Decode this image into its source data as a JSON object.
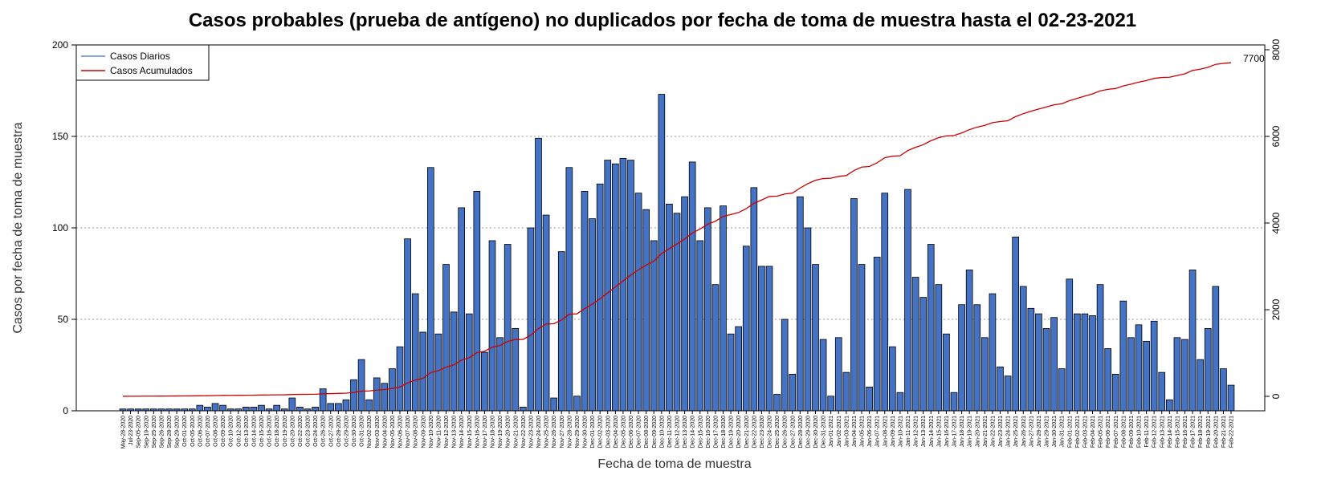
{
  "chart_data": {
    "type": "bar",
    "title": "Casos probables (prueba de antígeno) no duplicados por fecha de toma de muestra hasta el 02-23-2021",
    "xlabel": "Fecha de toma de muestra",
    "ylabel": "Casos por fecha de toma de muestra",
    "ylim": [
      0,
      200
    ],
    "y_ticks": [
      0,
      50,
      100,
      150,
      200
    ],
    "y2lim": [
      -400,
      8000
    ],
    "y2_ticks": [
      0,
      2000,
      4000,
      6000,
      8000
    ],
    "grid": "horizontal dotted at left-axis ticks",
    "legend_position": "top-left",
    "colors": {
      "bars": "#4472C4",
      "bar_outline": "#000000",
      "cumulative_line": "#CC0000",
      "daily_legend": "#5b8bd4",
      "grid": "#999999"
    },
    "categories": [
      "May-28-2020",
      "Jul-23-2020",
      "Sep-05-2020",
      "Sep-19-2020",
      "Sep-25-2020",
      "Sep-26-2020",
      "Sep-28-2020",
      "Sep-29-2020",
      "Oct-01-2020",
      "Oct-05-2020",
      "Oct-06-2020",
      "Oct-07-2020",
      "Oct-08-2020",
      "Oct-09-2020",
      "Oct-10-2020",
      "Oct-12-2020",
      "Oct-13-2020",
      "Oct-14-2020",
      "Oct-15-2020",
      "Oct-16-2020",
      "Oct-18-2020",
      "Oct-19-2020",
      "Oct-20-2020",
      "Oct-22-2020",
      "Oct-23-2020",
      "Oct-24-2020",
      "Oct-26-2020",
      "Oct-27-2020",
      "Oct-28-2020",
      "Oct-29-2020",
      "Oct-30-2020",
      "Oct-31-2020",
      "Nov-02-2020",
      "Nov-03-2020",
      "Nov-04-2020",
      "Nov-05-2020",
      "Nov-06-2020",
      "Nov-07-2020",
      "Nov-08-2020",
      "Nov-09-2020",
      "Nov-10-2020",
      "Nov-11-2020",
      "Nov-12-2020",
      "Nov-13-2020",
      "Nov-14-2020",
      "Nov-15-2020",
      "Nov-16-2020",
      "Nov-17-2020",
      "Nov-18-2020",
      "Nov-19-2020",
      "Nov-20-2020",
      "Nov-21-2020",
      "Nov-22-2020",
      "Nov-23-2020",
      "Nov-24-2020",
      "Nov-25-2020",
      "Nov-26-2020",
      "Nov-27-2020",
      "Nov-28-2020",
      "Nov-29-2020",
      "Nov-30-2020",
      "Dec-01-2020",
      "Dec-02-2020",
      "Dec-03-2020",
      "Dec-04-2020",
      "Dec-05-2020",
      "Dec-06-2020",
      "Dec-07-2020",
      "Dec-08-2020",
      "Dec-09-2020",
      "Dec-10-2020",
      "Dec-11-2020",
      "Dec-12-2020",
      "Dec-13-2020",
      "Dec-14-2020",
      "Dec-15-2020",
      "Dec-16-2020",
      "Dec-17-2020",
      "Dec-18-2020",
      "Dec-19-2020",
      "Dec-20-2020",
      "Dec-21-2020",
      "Dec-22-2020",
      "Dec-23-2020",
      "Dec-24-2020",
      "Dec-25-2020",
      "Dec-26-2020",
      "Dec-27-2020",
      "Dec-28-2020",
      "Dec-29-2020",
      "Dec-30-2020",
      "Dec-31-2020",
      "Jan-01-2021",
      "Jan-02-2021",
      "Jan-03-2021",
      "Jan-04-2021",
      "Jan-05-2021",
      "Jan-06-2021",
      "Jan-07-2021",
      "Jan-08-2021",
      "Jan-09-2021",
      "Jan-10-2021",
      "Jan-11-2021",
      "Jan-12-2021",
      "Jan-13-2021",
      "Jan-14-2021",
      "Jan-15-2021",
      "Jan-16-2021",
      "Jan-17-2021",
      "Jan-18-2021",
      "Jan-19-2021",
      "Jan-20-2021",
      "Jan-21-2021",
      "Jan-22-2021",
      "Jan-23-2021",
      "Jan-24-2021",
      "Jan-25-2021",
      "Jan-26-2021",
      "Jan-27-2021",
      "Jan-28-2021",
      "Jan-29-2021",
      "Jan-30-2021",
      "Jan-31-2021",
      "Feb-01-2021",
      "Feb-02-2021",
      "Feb-03-2021",
      "Feb-04-2021",
      "Feb-05-2021",
      "Feb-06-2021",
      "Feb-07-2021",
      "Feb-08-2021",
      "Feb-09-2021",
      "Feb-10-2021",
      "Feb-11-2021",
      "Feb-12-2021",
      "Feb-13-2021",
      "Feb-14-2021",
      "Feb-15-2021",
      "Feb-16-2021",
      "Feb-17-2021",
      "Feb-18-2021",
      "Feb-19-2021",
      "Feb-20-2021",
      "Feb-21-2021",
      "Feb-22-2021"
    ],
    "series": [
      {
        "name": "Casos Diarios",
        "values": [
          1,
          1,
          1,
          1,
          1,
          1,
          1,
          1,
          1,
          1,
          3,
          2,
          4,
          3,
          1,
          1,
          2,
          2,
          3,
          1,
          3,
          1,
          7,
          2,
          1,
          2,
          12,
          4,
          4,
          6,
          17,
          28,
          6,
          18,
          15,
          23,
          35,
          94,
          64,
          43,
          133,
          42,
          80,
          54,
          111,
          53,
          120,
          32,
          93,
          40,
          91,
          45,
          2,
          100,
          149,
          107,
          7,
          87,
          133,
          8,
          120,
          105,
          124,
          137,
          135,
          138,
          137,
          119,
          110,
          93,
          173,
          113,
          108,
          117,
          136,
          93,
          111,
          69,
          112,
          42,
          46,
          90,
          122,
          79,
          79,
          9,
          50,
          20,
          117,
          100,
          80,
          39,
          8,
          40,
          21,
          116,
          80,
          13,
          84,
          119,
          35,
          10,
          121,
          73,
          62,
          91,
          69,
          42,
          10,
          58,
          77,
          58,
          40,
          64,
          24,
          19,
          95,
          68,
          56,
          53,
          45,
          51,
          23,
          72,
          53,
          53,
          52,
          69,
          34,
          20,
          60,
          40,
          47,
          38,
          49,
          21,
          6,
          40,
          39,
          77,
          28,
          45,
          68,
          23,
          14
        ]
      },
      {
        "name": "Casos Acumulados",
        "values": [
          1,
          2,
          3,
          4,
          5,
          6,
          7,
          8,
          9,
          10,
          13,
          15,
          19,
          22,
          23,
          24,
          26,
          28,
          31,
          32,
          35,
          36,
          43,
          45,
          46,
          48,
          60,
          64,
          68,
          74,
          91,
          119,
          125,
          143,
          158,
          181,
          216,
          310,
          374,
          417,
          550,
          592,
          672,
          726,
          837,
          890,
          1010,
          1042,
          1135,
          1175,
          1266,
          1311,
          1313,
          1413,
          1562,
          1669,
          1676,
          1763,
          1896,
          1904,
          2024,
          2129,
          2253,
          2390,
          2525,
          2663,
          2800,
          2919,
          3029,
          3122,
          3295,
          3408,
          3516,
          3633,
          3769,
          3862,
          3973,
          4042,
          4154,
          4196,
          4242,
          4332,
          4454,
          4533,
          4612,
          4621,
          4671,
          4691,
          4808,
          4908,
          4988,
          5027,
          5035,
          5075,
          5096,
          5212,
          5292,
          5305,
          5389,
          5508,
          5543,
          5553,
          5674,
          5747,
          5809,
          5900,
          5969,
          6011,
          6021,
          6079,
          6156,
          6214,
          6254,
          6318,
          6342,
          6361,
          6456,
          6524,
          6580,
          6633,
          6678,
          6729,
          6752,
          6824,
          6877,
          6930,
          6982,
          7051,
          7085,
          7105,
          7165,
          7205,
          7252,
          7290,
          7339,
          7360,
          7366,
          7406,
          7445,
          7522,
          7550,
          7595,
          7663,
          7686,
          7700
        ]
      }
    ],
    "annotations": [
      "7700"
    ]
  }
}
